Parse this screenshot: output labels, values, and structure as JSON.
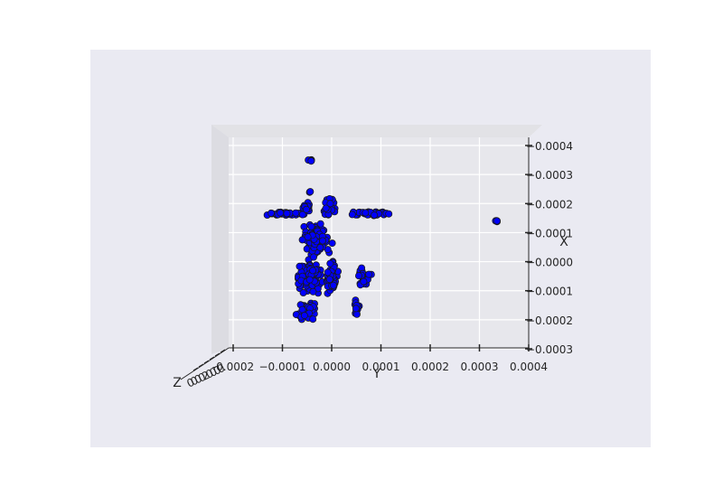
{
  "chart_data": {
    "type": "scatter",
    "projection": "3d",
    "title": "",
    "xlabel": "X",
    "ylabel": "Y",
    "zlabel": "Z",
    "y_ticks": [
      "-0.0002",
      "−0.0001",
      "0.0000",
      "0.0001",
      "0.0002",
      "0.0003",
      "0.0004"
    ],
    "x_ticks": [
      "0.0004",
      "0.0003",
      "0.0002",
      "0.0001",
      "0.0000",
      "0.0001",
      "0.0002",
      "0.0003"
    ],
    "z_ticks_overlapping": "000020000",
    "ylim": [
      -0.00022,
      0.0004
    ],
    "xlim": [
      -0.0003,
      0.0004
    ],
    "grid": true,
    "marker_color": "#0000ff",
    "marker_edge_color": "#1a1a1a",
    "series": [
      {
        "values": {
          "y": [
            0.0,
            0.0,
            -0.0001,
            0.00034,
            -6e-05,
            -3e-05,
            2e-05,
            6e-05
          ],
          "x": [
            0.00035,
            0.00021,
            0.00016,
            0.00016,
            0.0001,
            -5e-05,
            -0.00018,
            -0.0002
          ]
        },
        "clusters": [
          {
            "y_center": -4.5e-05,
            "x_center": 0.00035,
            "n": 4,
            "y_spread": 6e-06,
            "x_spread": 6e-06
          },
          {
            "y_center": -4.5e-05,
            "x_center": 0.00024,
            "n": 2,
            "y_spread": 3e-06,
            "x_spread": 4e-06
          },
          {
            "y_center": 0.0,
            "x_center": 0.00021,
            "n": 8,
            "y_spread": 8e-06,
            "x_spread": 1e-05
          },
          {
            "y_center": -9e-05,
            "x_center": 0.000165,
            "n": 40,
            "y_spread": 3.5e-05,
            "x_spread": 6e-06
          },
          {
            "y_center": 8e-05,
            "x_center": 0.000165,
            "n": 35,
            "y_spread": 3.5e-05,
            "x_spread": 6e-06
          },
          {
            "y_center": -5e-05,
            "x_center": 0.00019,
            "n": 12,
            "y_spread": 8e-06,
            "x_spread": 1.5e-05
          },
          {
            "y_center": -5e-06,
            "x_center": 0.00018,
            "n": 14,
            "y_spread": 1e-05,
            "x_spread": 1.8e-05
          },
          {
            "y_center": 0.000335,
            "x_center": 0.00014,
            "n": 4,
            "y_spread": 2e-06,
            "x_spread": 3e-06
          },
          {
            "y_center": -3e-05,
            "x_center": 8e-05,
            "n": 120,
            "y_spread": 2.2e-05,
            "x_spread": 5e-05
          },
          {
            "y_center": -4.5e-05,
            "x_center": -5e-05,
            "n": 90,
            "y_spread": 2e-05,
            "x_spread": 5e-05
          },
          {
            "y_center": 0.0,
            "x_center": -5e-05,
            "n": 60,
            "y_spread": 1e-05,
            "x_spread": 5e-05
          },
          {
            "y_center": 6.5e-05,
            "x_center": -5e-05,
            "n": 25,
            "y_spread": 1.2e-05,
            "x_spread": 3.5e-05
          },
          {
            "y_center": 5e-05,
            "x_center": -0.00016,
            "n": 18,
            "y_spread": 6e-06,
            "x_spread": 2.5e-05
          },
          {
            "y_center": -5.5e-05,
            "x_center": -0.00017,
            "n": 40,
            "y_spread": 1.8e-05,
            "x_spread": 3e-05
          }
        ]
      }
    ]
  }
}
